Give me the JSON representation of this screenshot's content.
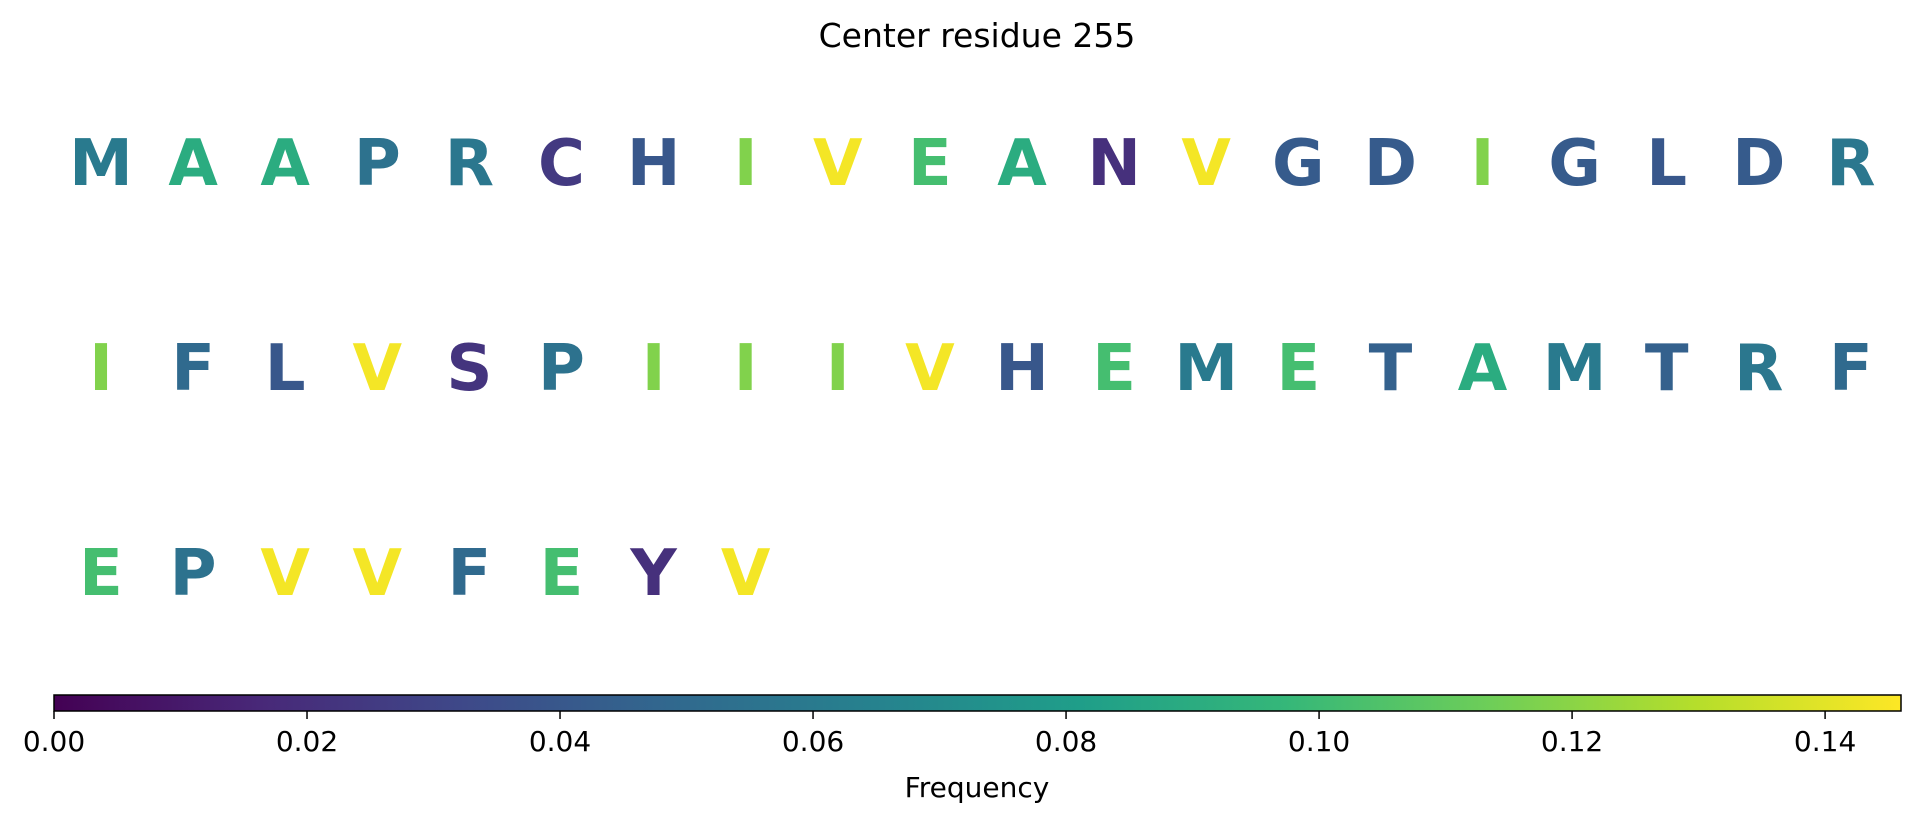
{
  "chart_data": {
    "type": "heatmap",
    "title": "Center residue 255",
    "colorbar": {
      "label": "Frequency",
      "range": [
        0,
        0.146
      ],
      "ticks": [
        0,
        0.02,
        0.04,
        0.06,
        0.08,
        0.1,
        0.12,
        0.14
      ],
      "tick_labels": [
        "0.00",
        "0.02",
        "0.04",
        "0.06",
        "0.08",
        "0.10",
        "0.12",
        "0.14"
      ],
      "colormap": "viridis",
      "placement": "bottom"
    },
    "residues_per_row": 20,
    "residues": [
      {
        "letter": "M",
        "frequency": 0.06
      },
      {
        "letter": "A",
        "frequency": 0.09
      },
      {
        "letter": "A",
        "frequency": 0.09
      },
      {
        "letter": "P",
        "frequency": 0.055
      },
      {
        "letter": "R",
        "frequency": 0.058
      },
      {
        "letter": "C",
        "frequency": 0.025
      },
      {
        "letter": "H",
        "frequency": 0.04
      },
      {
        "letter": "I",
        "frequency": 0.118
      },
      {
        "letter": "V",
        "frequency": 0.144
      },
      {
        "letter": "E",
        "frequency": 0.102
      },
      {
        "letter": "A",
        "frequency": 0.09
      },
      {
        "letter": "N",
        "frequency": 0.02
      },
      {
        "letter": "V",
        "frequency": 0.144
      },
      {
        "letter": "G",
        "frequency": 0.042
      },
      {
        "letter": "D",
        "frequency": 0.042
      },
      {
        "letter": "I",
        "frequency": 0.118
      },
      {
        "letter": "G",
        "frequency": 0.042
      },
      {
        "letter": "L",
        "frequency": 0.04
      },
      {
        "letter": "D",
        "frequency": 0.042
      },
      {
        "letter": "R",
        "frequency": 0.058
      },
      {
        "letter": "I",
        "frequency": 0.118
      },
      {
        "letter": "F",
        "frequency": 0.05
      },
      {
        "letter": "L",
        "frequency": 0.04
      },
      {
        "letter": "V",
        "frequency": 0.144
      },
      {
        "letter": "S",
        "frequency": 0.022
      },
      {
        "letter": "P",
        "frequency": 0.055
      },
      {
        "letter": "I",
        "frequency": 0.118
      },
      {
        "letter": "I",
        "frequency": 0.118
      },
      {
        "letter": "I",
        "frequency": 0.118
      },
      {
        "letter": "V",
        "frequency": 0.144
      },
      {
        "letter": "H",
        "frequency": 0.04
      },
      {
        "letter": "E",
        "frequency": 0.102
      },
      {
        "letter": "M",
        "frequency": 0.06
      },
      {
        "letter": "E",
        "frequency": 0.102
      },
      {
        "letter": "T",
        "frequency": 0.045
      },
      {
        "letter": "A",
        "frequency": 0.09
      },
      {
        "letter": "M",
        "frequency": 0.06
      },
      {
        "letter": "T",
        "frequency": 0.045
      },
      {
        "letter": "R",
        "frequency": 0.058
      },
      {
        "letter": "F",
        "frequency": 0.05
      },
      {
        "letter": "E",
        "frequency": 0.102
      },
      {
        "letter": "P",
        "frequency": 0.055
      },
      {
        "letter": "V",
        "frequency": 0.144
      },
      {
        "letter": "V",
        "frequency": 0.144
      },
      {
        "letter": "F",
        "frequency": 0.05
      },
      {
        "letter": "E",
        "frequency": 0.102
      },
      {
        "letter": "Y",
        "frequency": 0.02
      },
      {
        "letter": "V",
        "frequency": 0.144
      }
    ]
  }
}
